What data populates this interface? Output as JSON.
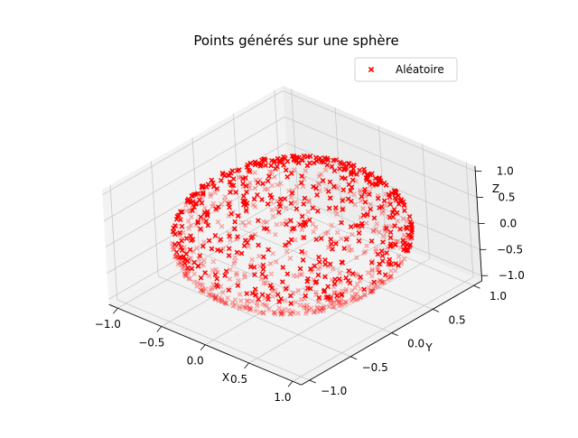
{
  "chart_data": {
    "type": "scatter",
    "subtype": "3d-scatter",
    "title": "Points générés sur une sphère",
    "xlabel": "X",
    "ylabel": "Y",
    "zlabel": "Z",
    "xlim": [
      -1.1,
      1.1
    ],
    "ylim": [
      -1.1,
      1.1
    ],
    "zlim": [
      -1.1,
      1.1
    ],
    "xticks": [
      "−1.0",
      "−0.5",
      "0.0",
      "0.5",
      "1.0"
    ],
    "yticks": [
      "−1.0",
      "−0.5",
      "0.0",
      "0.5",
      "1.0"
    ],
    "zticks": [
      "−1.0",
      "−0.5",
      "0.0",
      "0.5",
      "1.0"
    ],
    "grid": true,
    "legend_position": "top-right",
    "series": [
      {
        "name": "Aléatoire",
        "color": "#ff0000",
        "marker": "x",
        "count": 1000,
        "distribution": "uniform on unit sphere, radius 1"
      }
    ]
  }
}
